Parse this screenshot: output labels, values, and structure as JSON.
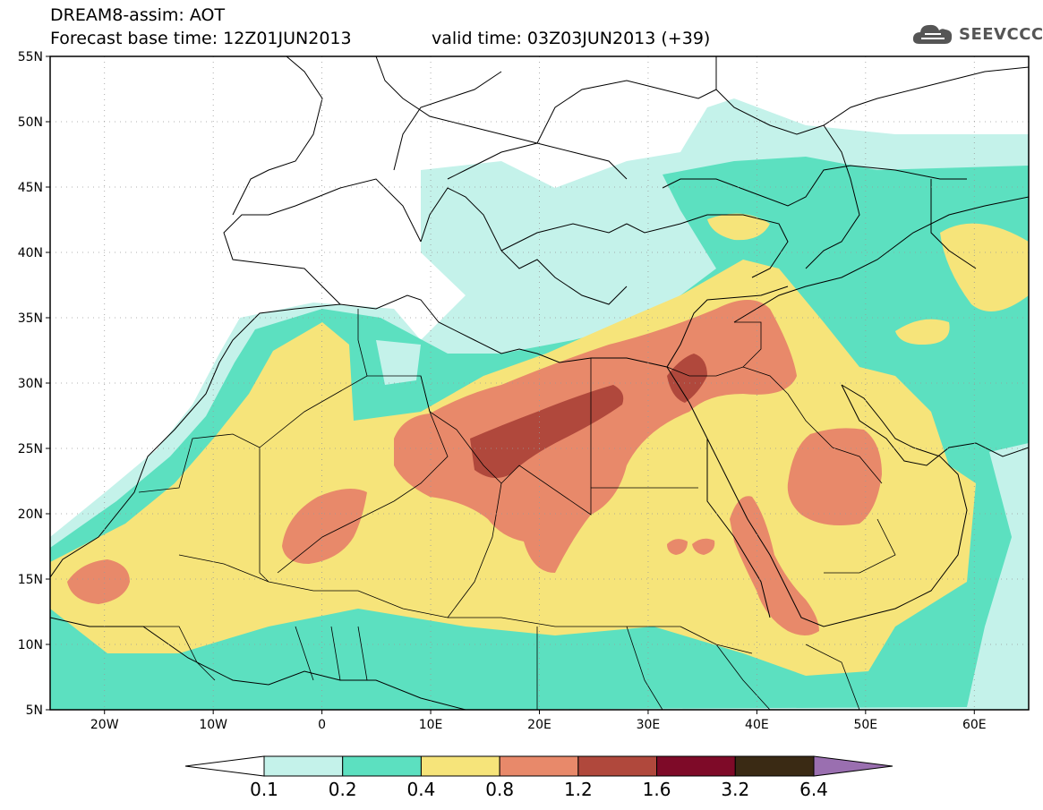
{
  "header": {
    "title": "DREAM8-assim: AOT",
    "base_time_label": "Forecast base time: 12Z01JUN2013",
    "valid_time_label": "valid time: 03Z03JUN2013 (+39)"
  },
  "logo": {
    "text": "SEEVCCC",
    "icon": "cloud-icon"
  },
  "map": {
    "lat_labels": [
      "55N",
      "50N",
      "45N",
      "40N",
      "35N",
      "30N",
      "25N",
      "20N",
      "15N",
      "10N",
      "5N"
    ],
    "lon_labels": [
      "20W",
      "10W",
      "0",
      "10E",
      "20E",
      "30E",
      "40E",
      "50E",
      "60E"
    ],
    "lon_range": [
      -25,
      65
    ],
    "lat_range": [
      5,
      55
    ]
  },
  "colorbar": {
    "labels": [
      "0.1",
      "0.2",
      "0.4",
      "0.8",
      "1.2",
      "1.6",
      "3.2",
      "6.4"
    ],
    "colors": [
      "#ffffff",
      "#c4f2ea",
      "#5ce0c0",
      "#f6e47a",
      "#e8896a",
      "#b0483c",
      "#7e0a28",
      "#3a2a14",
      "#9a6fb0"
    ]
  }
}
